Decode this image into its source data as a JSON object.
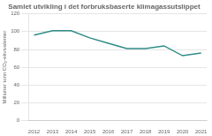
{
  "chart_data": {
    "type": "line",
    "title": "Samlet utvikling i det forbruksbaserte klimagassutslippet",
    "ylabel": "Millioner tonn CO₂-ekvivalenter",
    "x": [
      2012,
      2013,
      2014,
      2015,
      2016,
      2017,
      2018,
      2019,
      2020,
      2021
    ],
    "values": [
      96,
      101,
      101,
      93,
      87,
      81,
      81,
      84,
      73,
      76
    ],
    "color": "#2e8b88",
    "xlim": [
      2011.7,
      2021.3
    ],
    "xticks": [
      2012,
      2013,
      2014,
      2015,
      2016,
      2017,
      2018,
      2019,
      2020,
      2021
    ],
    "ylim": [
      0,
      120
    ],
    "yticks": [
      0,
      20,
      40,
      60,
      80,
      100,
      120
    ],
    "grid": "y"
  }
}
